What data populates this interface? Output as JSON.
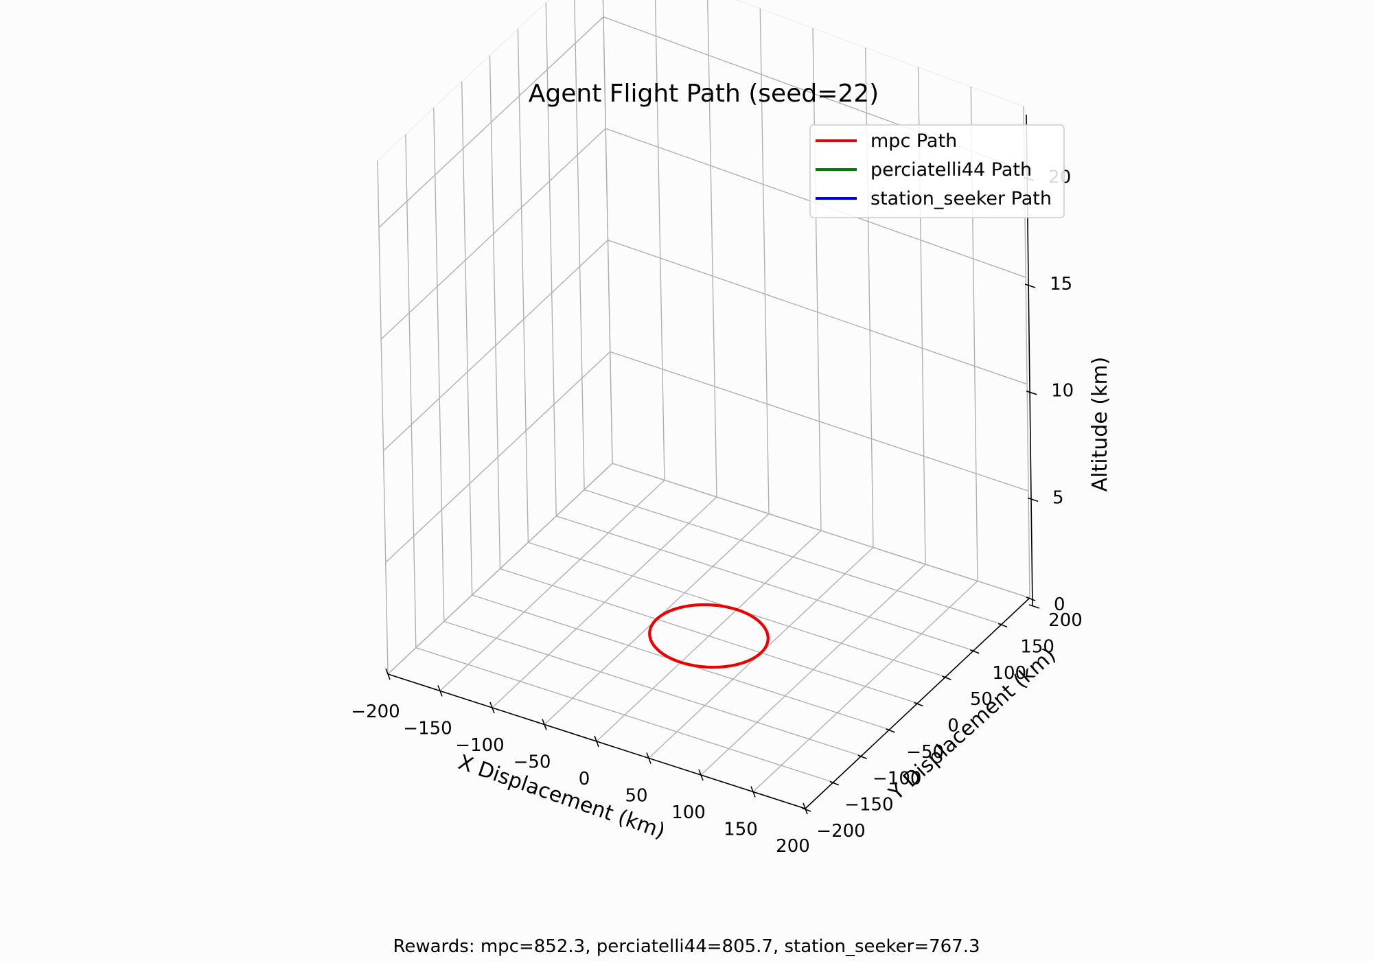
{
  "chart_data": {
    "type": "line",
    "projection": "3d",
    "title": "Agent Flight Path (seed=22)",
    "xlabel": "X Displacement (km)",
    "ylabel": "Y Displacement (km)",
    "zlabel": "Altitude (km)",
    "xlim": [
      -200,
      200
    ],
    "ylim": [
      -200,
      200
    ],
    "zlim": [
      0,
      23
    ],
    "x_ticks": [
      -200,
      -150,
      -100,
      -50,
      0,
      50,
      100,
      150,
      200
    ],
    "y_ticks": [
      -200,
      -150,
      -100,
      -50,
      0,
      50,
      100,
      150,
      200
    ],
    "z_ticks": [
      0,
      5,
      10,
      15,
      20
    ],
    "x_tick_labels": [
      "−200",
      "−150",
      "−100",
      "−50",
      "0",
      "50",
      "100",
      "150",
      "200"
    ],
    "y_tick_labels": [
      "−200",
      "−150",
      "−100",
      "−50",
      "0",
      "50",
      "100",
      "150",
      "200"
    ],
    "z_tick_labels": [
      "0",
      "5",
      "10",
      "15",
      "20"
    ],
    "grid": true,
    "legend_position": "top-right",
    "legend": [
      "mpc Path",
      "perciatelli44 Path",
      "station_seeker Path"
    ],
    "series": [
      {
        "name": "mpc Path",
        "color": "#ee0000",
        "shape": "circle",
        "center": [
          0,
          0
        ],
        "radius_km": 50,
        "altitude_km": 0
      },
      {
        "name": "perciatelli44 Path",
        "color": "#008000",
        "x": [],
        "y": [],
        "z": []
      },
      {
        "name": "station_seeker Path",
        "color": "#0000ee",
        "x": [],
        "y": [],
        "z": []
      }
    ]
  },
  "footer": {
    "rewards_text": "Rewards: mpc=852.3, perciatelli44=805.7, station_seeker=767.3"
  }
}
